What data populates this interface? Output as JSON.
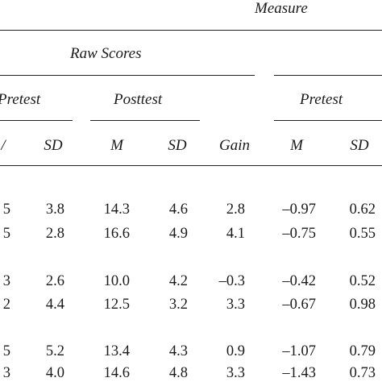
{
  "table": {
    "header": {
      "measure": "Measure",
      "raw_scores": "Raw Scores",
      "pretest_raw": "Pretest",
      "posttest_raw": "Posttest",
      "pretest_measure": "Pretest",
      "columns": [
        "",
        "SD",
        "M",
        "SD",
        "Gain",
        "M",
        "SD"
      ]
    },
    "rows": [
      [
        "5",
        "3.8",
        "14.3",
        "4.6",
        "2.8",
        "–0.97",
        "0.62"
      ],
      [
        "5",
        "2.8",
        "16.6",
        "4.9",
        "4.1",
        "–0.75",
        "0.55"
      ],
      [
        "3",
        "2.6",
        "10.0",
        "4.2",
        "–0.3",
        "–0.42",
        "0.52"
      ],
      [
        "2",
        "4.4",
        "12.5",
        "3.2",
        "3.3",
        "–0.67",
        "0.98"
      ],
      [
        "5",
        "5.2",
        "13.4",
        "4.3",
        "0.9",
        "–1.07",
        "0.79"
      ],
      [
        "3",
        "4.0",
        "14.6",
        "4.8",
        "3.3",
        "–1.43",
        "0.73"
      ]
    ]
  }
}
